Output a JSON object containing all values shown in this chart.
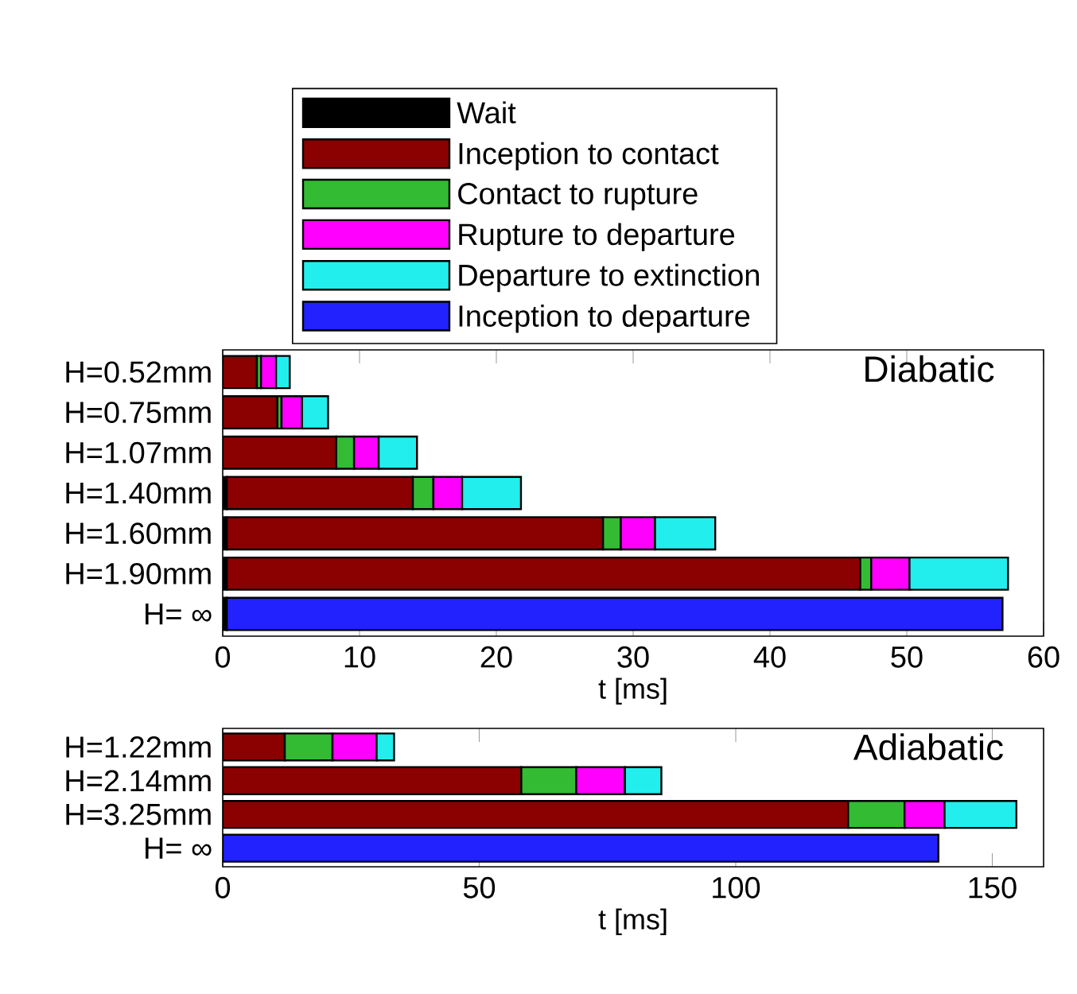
{
  "chart_data": [
    {
      "type": "bar",
      "orientation": "horizontal",
      "stacked": true,
      "title": "Diabatic",
      "xlabel": "t [ms]",
      "legend": "top",
      "categories": [
        "H=0.52mm",
        "H=0.75mm",
        "H=1.07mm",
        "H=1.40mm",
        "H=1.60mm",
        "H=1.90mm",
        "H= ∞"
      ],
      "xlim": [
        0,
        60
      ],
      "xticks": [
        0,
        10,
        20,
        30,
        40,
        50,
        60
      ],
      "series": [
        {
          "name": "Wait",
          "color": "#000000",
          "values": [
            null,
            null,
            null,
            0.3,
            0.3,
            0.3,
            0.3
          ]
        },
        {
          "name": "Inception to contact",
          "color": "#8b0000",
          "values": [
            2.5,
            4.0,
            8.3,
            13.6,
            27.5,
            46.3,
            null
          ]
        },
        {
          "name": "Contact to rupture",
          "color": "#33bb33",
          "values": [
            0.3,
            0.3,
            1.3,
            1.5,
            1.3,
            0.8,
            null
          ]
        },
        {
          "name": "Rupture to departure",
          "color": "#ff00ff",
          "values": [
            1.1,
            1.5,
            1.8,
            2.1,
            2.5,
            2.8,
            null
          ]
        },
        {
          "name": "Departure to extinction",
          "color": "#22eeee",
          "values": [
            1.0,
            1.9,
            2.8,
            4.3,
            4.4,
            7.2,
            null
          ]
        },
        {
          "name": "Inception to departure",
          "color": "#2222ff",
          "values": [
            null,
            null,
            null,
            null,
            null,
            null,
            56.7
          ]
        }
      ]
    },
    {
      "type": "bar",
      "orientation": "horizontal",
      "stacked": true,
      "title": "Adiabatic",
      "xlabel": "t [ms]",
      "categories": [
        "H=1.22mm",
        "H=2.14mm",
        "H=3.25mm",
        "H= ∞"
      ],
      "xlim": [
        0,
        160
      ],
      "xticks": [
        0,
        50,
        100,
        150
      ],
      "series": [
        {
          "color": "#8b0000",
          "values": [
            12.1,
            58.2,
            121.9,
            null
          ]
        },
        {
          "color": "#33bb33",
          "values": [
            9.3,
            10.7,
            11.0,
            null
          ]
        },
        {
          "color": "#ff00ff",
          "values": [
            8.6,
            9.5,
            7.8,
            null
          ]
        },
        {
          "color": "#22eeee",
          "values": [
            3.4,
            7.1,
            14.0,
            null
          ]
        },
        {
          "color": "#2222ff",
          "values": [
            null,
            null,
            null,
            139.5
          ]
        }
      ]
    }
  ]
}
